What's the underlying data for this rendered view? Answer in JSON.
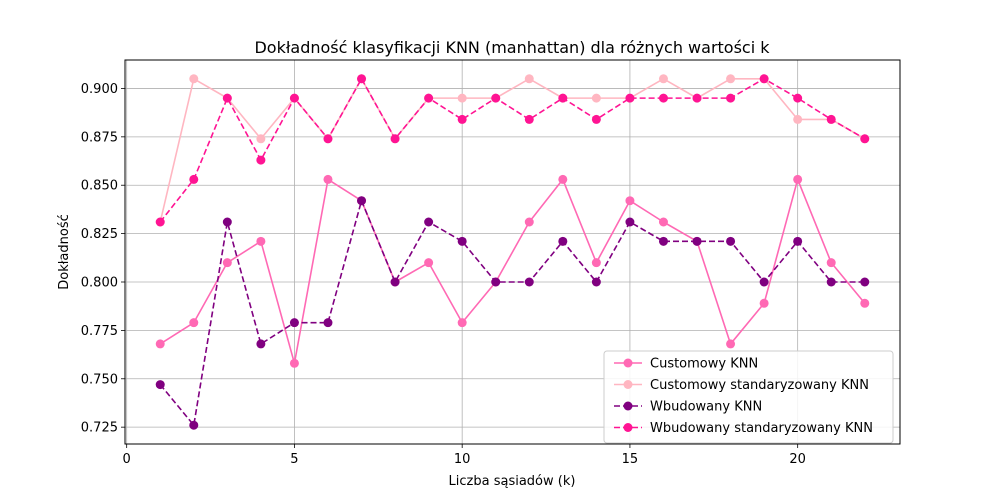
{
  "chart_data": {
    "type": "line",
    "title": "Dokładność klasyfikacji KNN (manhattan) dla różnych wartości k",
    "xlabel": "Liczba sąsiadów (k)",
    "ylabel": "Dokładność",
    "xlim": [
      -0.05,
      23.05
    ],
    "ylim": [
      0.7163,
      0.9147
    ],
    "xticks": [
      0,
      5,
      10,
      15,
      20
    ],
    "xtick_labels": [
      "0",
      "5",
      "10",
      "15",
      "20"
    ],
    "yticks": [
      0.725,
      0.75,
      0.775,
      0.8,
      0.825,
      0.85,
      0.875,
      0.9
    ],
    "ytick_labels": [
      "0.725",
      "0.750",
      "0.775",
      "0.800",
      "0.825",
      "0.850",
      "0.875",
      "0.900"
    ],
    "grid": true,
    "legend_position": "lower-right",
    "x": [
      1,
      2,
      3,
      4,
      5,
      6,
      7,
      8,
      9,
      10,
      11,
      12,
      13,
      14,
      15,
      16,
      17,
      18,
      19,
      20,
      21,
      22
    ],
    "series": [
      {
        "name": "Customowy KNN",
        "color": "#ff69b4",
        "line_style": "solid",
        "marker": "circle",
        "values": [
          0.768,
          0.779,
          0.81,
          0.821,
          0.758,
          0.853,
          0.842,
          0.8,
          0.81,
          0.779,
          0.8,
          0.831,
          0.853,
          0.81,
          0.842,
          0.831,
          0.821,
          0.768,
          0.789,
          0.853,
          0.81,
          0.789
        ]
      },
      {
        "name": "Customowy standaryzowany KNN",
        "color": "#ffb6c1",
        "line_style": "solid",
        "marker": "circle",
        "values": [
          0.831,
          0.905,
          0.895,
          0.874,
          0.895,
          0.874,
          0.905,
          0.874,
          0.895,
          0.895,
          0.895,
          0.905,
          0.895,
          0.895,
          0.895,
          0.905,
          0.895,
          0.905,
          0.905,
          0.884,
          0.884,
          0.874
        ]
      },
      {
        "name": "Wbudowany KNN",
        "color": "#800080",
        "line_style": "dashed",
        "marker": "circle",
        "values": [
          0.747,
          0.726,
          0.831,
          0.768,
          0.779,
          0.779,
          0.842,
          0.8,
          0.831,
          0.821,
          0.8,
          0.8,
          0.821,
          0.8,
          0.831,
          0.821,
          0.821,
          0.821,
          0.8,
          0.821,
          0.8,
          0.8
        ]
      },
      {
        "name": "Wbudowany standaryzowany KNN",
        "color": "#ff1493",
        "line_style": "dashed",
        "marker": "circle",
        "values": [
          0.831,
          0.853,
          0.895,
          0.863,
          0.895,
          0.874,
          0.905,
          0.874,
          0.895,
          0.884,
          0.895,
          0.884,
          0.895,
          0.884,
          0.895,
          0.895,
          0.895,
          0.895,
          0.905,
          0.895,
          0.884,
          0.874
        ]
      }
    ]
  }
}
